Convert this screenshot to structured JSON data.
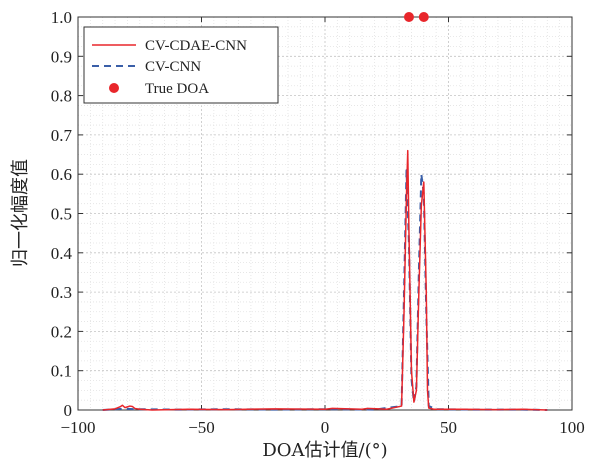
{
  "chart_data": {
    "type": "line",
    "xlabel": "DOA估计值/(°)",
    "ylabel": "归一化幅度值",
    "xlim": [
      -100,
      100
    ],
    "ylim": [
      0,
      1.0
    ],
    "x_ticks": [
      "−100",
      "−50",
      "0",
      "50",
      "100"
    ],
    "y_ticks": [
      "0",
      "0.1",
      "0.2",
      "0.3",
      "0.4",
      "0.5",
      "0.6",
      "0.7",
      "0.8",
      "0.9",
      "1.0"
    ],
    "grid": "on (major and minor, dotted)",
    "legend_placement": "top-left",
    "series": [
      {
        "name": "CV-CDAE-CNN",
        "style": "solid",
        "color": "#e8262b",
        "points": [
          [
            -90,
            0.0
          ],
          [
            -85,
            0.003
          ],
          [
            -83,
            0.008
          ],
          [
            -82,
            0.012
          ],
          [
            -81,
            0.006
          ],
          [
            -80,
            0.008
          ],
          [
            -79,
            0.01
          ],
          [
            -78,
            0.009
          ],
          [
            -77,
            0.004
          ],
          [
            -75,
            0.002
          ],
          [
            -70,
            0.0
          ],
          [
            -55,
            0.002
          ],
          [
            -40,
            0.001
          ],
          [
            -20,
            0.003
          ],
          [
            0,
            0.002
          ],
          [
            3,
            0.004
          ],
          [
            15,
            0.002
          ],
          [
            17,
            0.004
          ],
          [
            25,
            0.002
          ],
          [
            31,
            0.01
          ],
          [
            32,
            0.25
          ],
          [
            33,
            0.55
          ],
          [
            33.5,
            0.66
          ],
          [
            34,
            0.45
          ],
          [
            35,
            0.1
          ],
          [
            36,
            0.02
          ],
          [
            37,
            0.05
          ],
          [
            38,
            0.3
          ],
          [
            39,
            0.52
          ],
          [
            40,
            0.58
          ],
          [
            41,
            0.3
          ],
          [
            41.5,
            0.05
          ],
          [
            42,
            0.005
          ],
          [
            44,
            0.002
          ],
          [
            55,
            0.002
          ],
          [
            70,
            0.001
          ],
          [
            80,
            0.002
          ],
          [
            90,
            0.0
          ]
        ]
      },
      {
        "name": "CV-CNN",
        "style": "dashed",
        "color": "#3a5fa8",
        "points": [
          [
            -90,
            0.0
          ],
          [
            -82,
            0.003
          ],
          [
            -75,
            0.002
          ],
          [
            -60,
            0.001
          ],
          [
            -40,
            0.002
          ],
          [
            -20,
            0.001
          ],
          [
            0,
            0.002
          ],
          [
            20,
            0.001
          ],
          [
            31,
            0.01
          ],
          [
            32,
            0.3
          ],
          [
            33,
            0.61
          ],
          [
            34,
            0.42
          ],
          [
            35,
            0.08
          ],
          [
            36,
            0.02
          ],
          [
            37,
            0.06
          ],
          [
            38,
            0.35
          ],
          [
            39,
            0.6
          ],
          [
            40,
            0.55
          ],
          [
            41,
            0.25
          ],
          [
            42,
            0.01
          ],
          [
            45,
            0.002
          ],
          [
            60,
            0.001
          ],
          [
            80,
            0.001
          ],
          [
            90,
            0.0
          ]
        ]
      },
      {
        "name": "True DOA",
        "style": "marker",
        "color": "#e8262b",
        "points": [
          [
            34,
            1.0
          ],
          [
            40,
            1.0
          ]
        ]
      }
    ]
  }
}
